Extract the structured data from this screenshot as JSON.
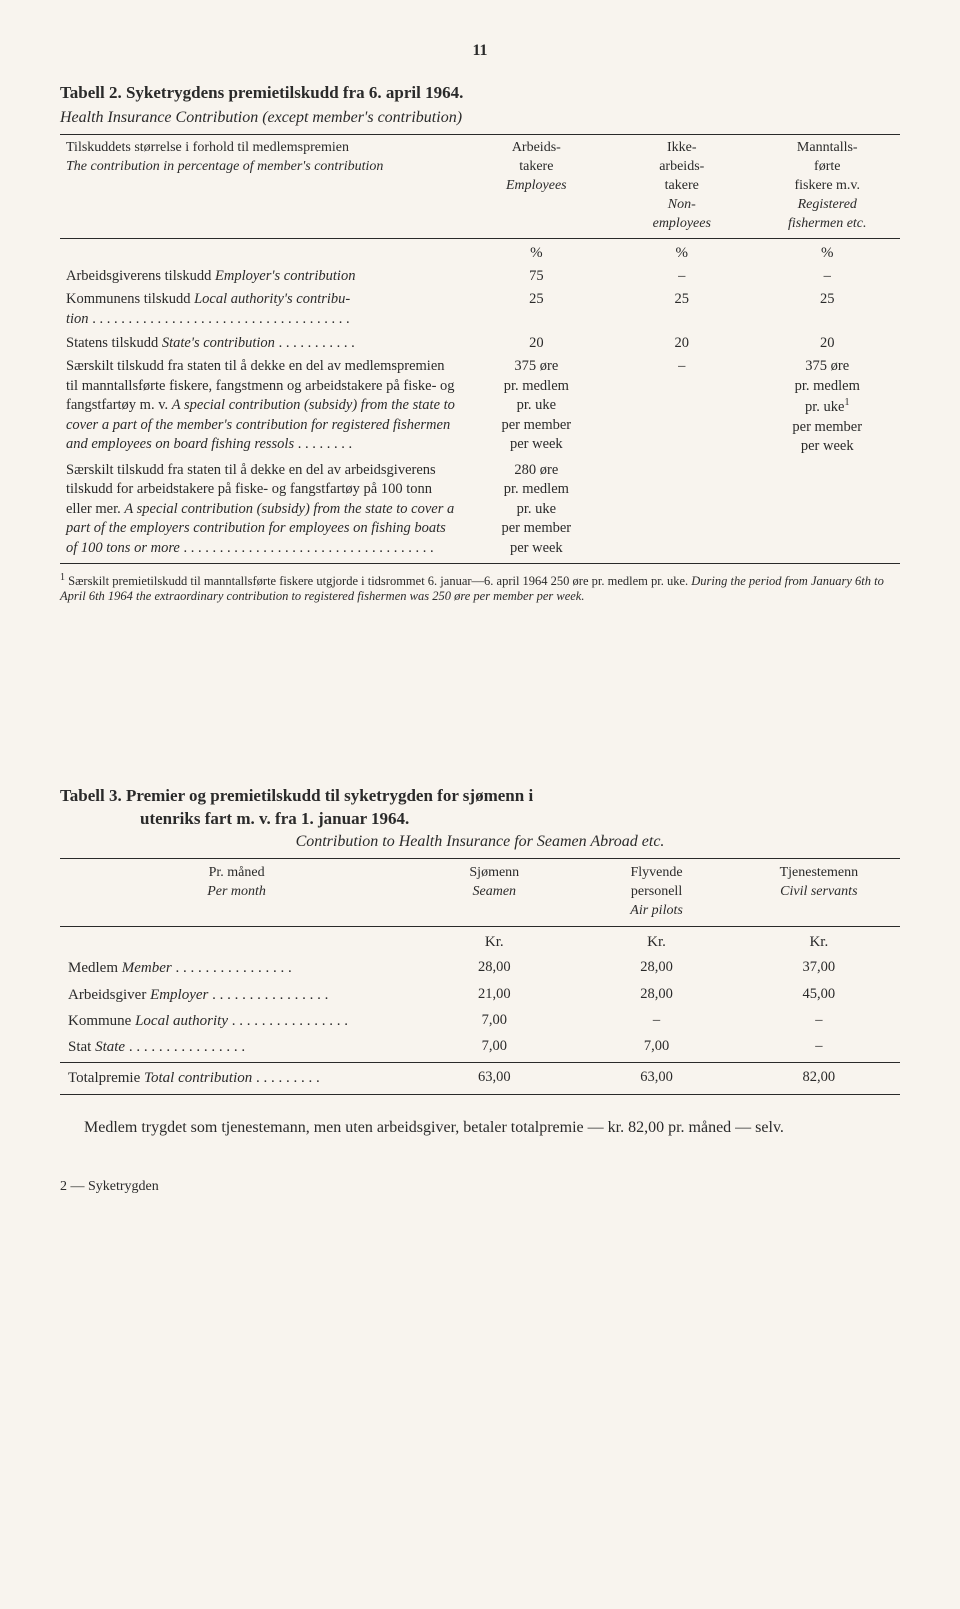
{
  "page_number": "11",
  "table2": {
    "title": "Tabell 2. Syketrygdens premietilskudd fra 6. april 1964.",
    "subtitle": "Health Insurance Contribution (except member's contribution)",
    "stub_header_no": "Tilskuddets størrelse i forhold til medlemspremien",
    "stub_header_en": "The contribution in percentage of member's contribution",
    "cols": [
      {
        "no": "Arbeids-\ntakere",
        "en": "Employees"
      },
      {
        "no": "Ikke-\narbeids-\ntakere",
        "en": "Non-\nemployees"
      },
      {
        "no": "Manntalls-\nførte\nfiskere m.v.",
        "en": "Registered\nfishermen etc."
      }
    ],
    "pct": "%",
    "rows": [
      {
        "desc_html": "Arbeidsgiverens tilskudd <span class='it'>Employer's contribution</span>",
        "v1": "75",
        "v2": "–",
        "v3": "–"
      },
      {
        "desc_html": "Kommunens tilskudd <span class='it'>Local authority's contribu-<br>tion</span> . . . . . . . . . . . . . . . . . . . . . . . . . . . . . . . . . . . .",
        "v1": "25",
        "v2": "25",
        "v3": "25"
      },
      {
        "desc_html": "Statens tilskudd <span class='it'>State's contribution</span> . . . . . . . . . . .",
        "v1": "20",
        "v2": "20",
        "v3": "20"
      },
      {
        "desc_html": "Særskilt tilskudd fra staten til å dekke en del av medlemspremien til manntallsførte fiskere, fangstmenn og arbeidstakere på fiske- og fangstfartøy m. v. <span class='it'>A special contribution (subsidy) from the state to cover a part of the member's contribution for registered fishermen and employees on board fishing ressols</span> . . . . . . . .",
        "v1": "375 øre<br>pr. medlem<br>pr. uke<br><span class='it'>per member<br>per week</span>",
        "v2": "–",
        "v3": "375 øre<br>pr. medlem<br>pr. uke<span class='sup'>1</span><br><span class='it'>per member<br>per week</span>"
      },
      {
        "desc_html": "Særskilt tilskudd fra staten til å dekke en del av arbeidsgiverens tilskudd for arbeidstakere på fiske- og fangstfartøy på 100 tonn eller mer. <span class='it'>A special contribution (subsidy) from the state to cover a part of the employers contribution for employees on fishing boats of 100 tons or more</span> . . . . . . . . . . . . . . . . . . . . . . . . . . . . . . . . . . .",
        "v1": "280 øre<br>pr. medlem<br>pr. uke<br><span class='it'>per member<br>per week</span>",
        "v2": "",
        "v3": ""
      }
    ],
    "footnote_html": "<span class='sup'>1</span> Særskilt premietilskudd til manntallsførte fiskere utgjorde i tidsrommet 6. januar—6. april 1964 250 øre pr. medlem pr. uke. <span class='it'>During the period from January 6th to April 6th 1964 the extraordinary contribution to registered fishermen was 250 øre per member per week.</span>"
  },
  "table3": {
    "title_line1": "Tabell 3. Premier og premietilskudd til syketrygden for sjømenn i",
    "title_line2": "utenriks fart m. v. fra 1. januar 1964.",
    "subtitle": "Contribution to Health Insurance for Seamen Abroad etc.",
    "stub_no": "Pr. måned",
    "stub_en": "Per month",
    "cols": [
      {
        "no": "Sjømenn",
        "en": "Seamen"
      },
      {
        "no": "Flyvende\npersonell",
        "en": "Air pilots"
      },
      {
        "no": "Tjenestemenn",
        "en": "Civil servants"
      }
    ],
    "unit": "Kr.",
    "rows": [
      {
        "label_no": "Medlem",
        "label_en": "Member",
        "v1": "28,00",
        "v2": "28,00",
        "v3": "37,00"
      },
      {
        "label_no": "Arbeidsgiver",
        "label_en": "Employer",
        "v1": "21,00",
        "v2": "28,00",
        "v3": "45,00"
      },
      {
        "label_no": "Kommune",
        "label_en": "Local authority",
        "v1": "7,00",
        "v2": "–",
        "v3": "–"
      },
      {
        "label_no": "Stat",
        "label_en": "State",
        "v1": "7,00",
        "v2": "7,00",
        "v3": "–"
      }
    ],
    "total": {
      "label_no": "Totalpremie",
      "label_en": "Total contribution",
      "v1": "63,00",
      "v2": "63,00",
      "v3": "82,00"
    }
  },
  "bottom_para": "Medlem trygdet som tjenestemann, men uten arbeidsgiver, betaler totalpremie — kr. 82,00 pr. måned — selv.",
  "signature": "2 — Syketrygden"
}
